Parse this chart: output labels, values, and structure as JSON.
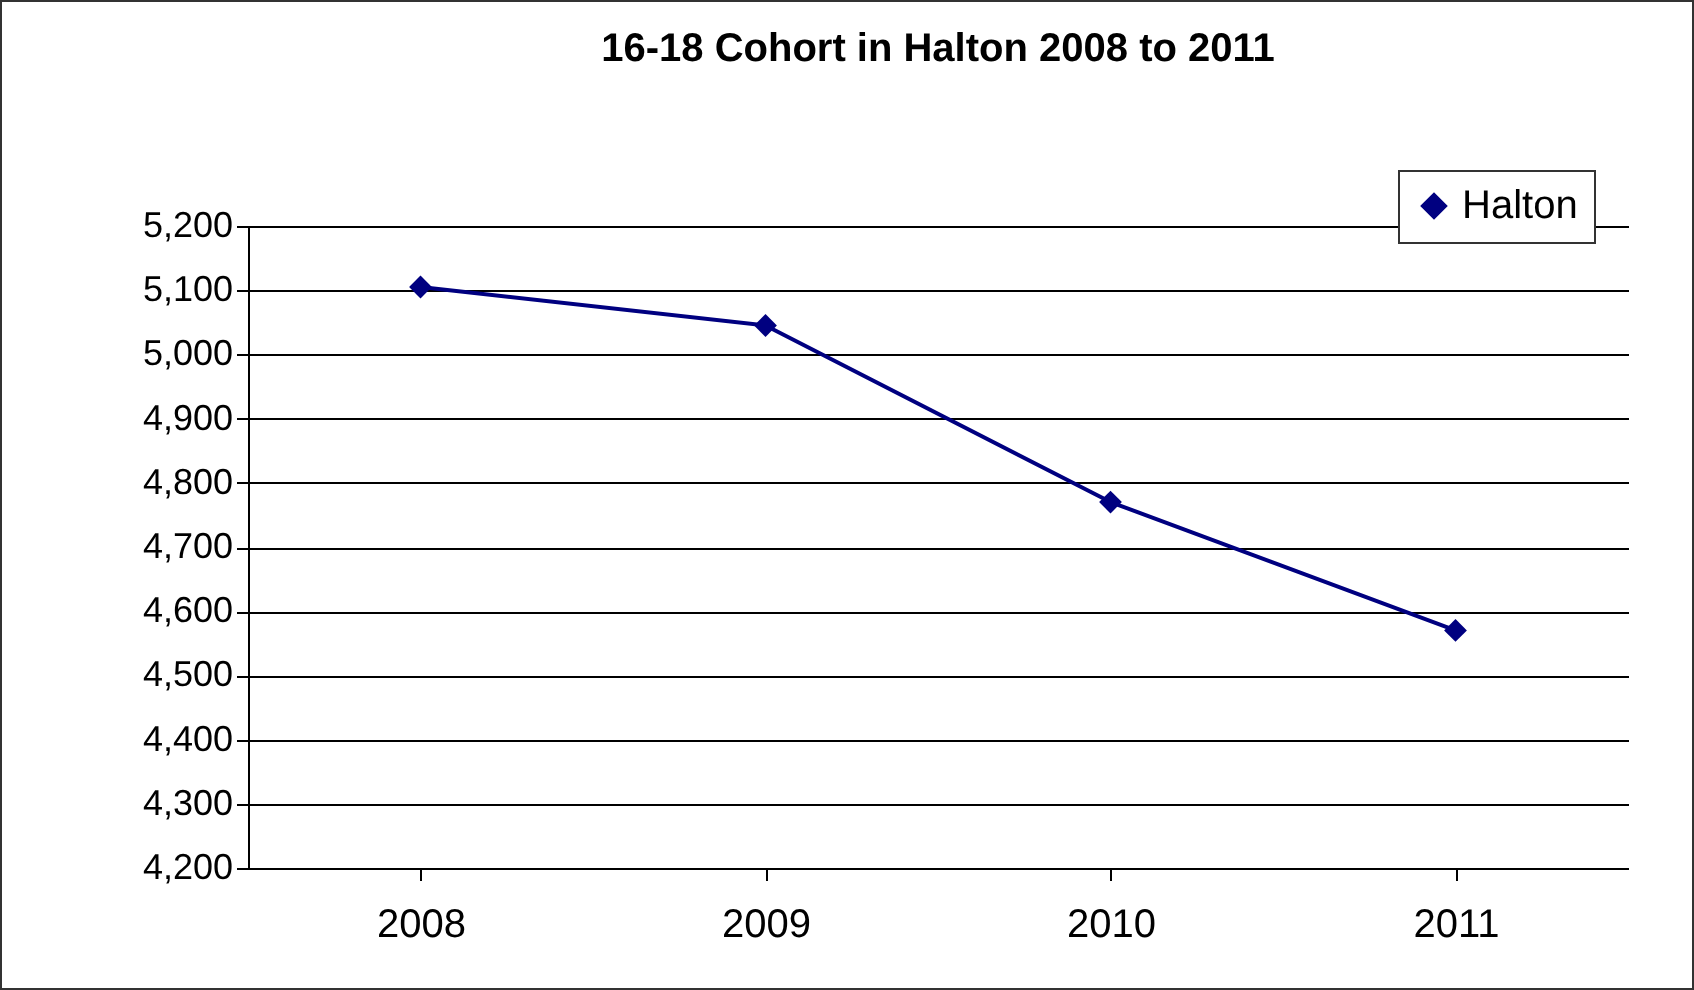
{
  "chart_data": {
    "type": "line",
    "title": "16-18 Cohort in Halton 2008 to 2011",
    "categories": [
      "2008",
      "2009",
      "2010",
      "2011"
    ],
    "series": [
      {
        "name": "Halton",
        "color": "#000080",
        "values": [
          5105,
          5045,
          4770,
          4570
        ]
      }
    ],
    "ylim": [
      4200,
      5200
    ],
    "yticks": [
      {
        "value": 4200,
        "label": "4,200"
      },
      {
        "value": 4300,
        "label": "4,300"
      },
      {
        "value": 4400,
        "label": "4,400"
      },
      {
        "value": 4500,
        "label": "4,500"
      },
      {
        "value": 4600,
        "label": "4,600"
      },
      {
        "value": 4700,
        "label": "4,700"
      },
      {
        "value": 4800,
        "label": "4,800"
      },
      {
        "value": 4900,
        "label": "4,900"
      },
      {
        "value": 5000,
        "label": "5,000"
      },
      {
        "value": 5100,
        "label": "5,100"
      },
      {
        "value": 5200,
        "label": "5,200"
      }
    ],
    "grid": "y",
    "legend": "top right",
    "marker": "diamond"
  }
}
